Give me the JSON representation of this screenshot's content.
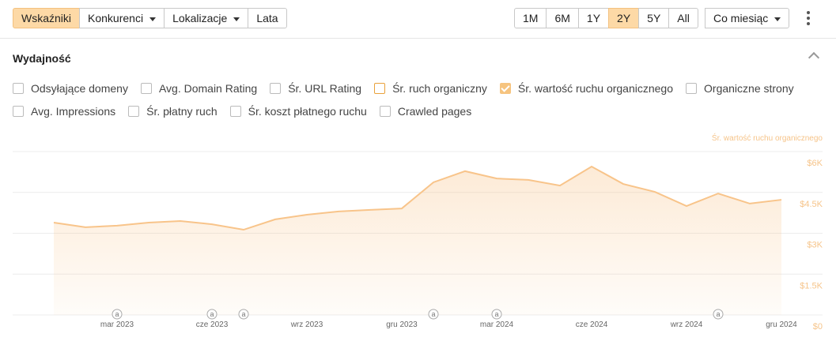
{
  "toolbar": {
    "tabs": [
      {
        "label": "Wskaźniki",
        "active": true,
        "dropdown": false
      },
      {
        "label": "Konkurenci",
        "active": false,
        "dropdown": true
      },
      {
        "label": "Lokalizacje",
        "active": false,
        "dropdown": true
      },
      {
        "label": "Lata",
        "active": false,
        "dropdown": false
      }
    ],
    "ranges": [
      {
        "label": "1M",
        "active": false
      },
      {
        "label": "6M",
        "active": false
      },
      {
        "label": "1Y",
        "active": false
      },
      {
        "label": "2Y",
        "active": true
      },
      {
        "label": "5Y",
        "active": false
      },
      {
        "label": "All",
        "active": false
      }
    ],
    "interval": "Co miesiąc"
  },
  "section": {
    "title": "Wydajność",
    "metrics": [
      [
        {
          "label": "Odsyłające domeny",
          "state": "unchecked"
        },
        {
          "label": "Avg. Domain Rating",
          "state": "unchecked"
        },
        {
          "label": "Śr. URL Rating",
          "state": "unchecked"
        },
        {
          "label": "Śr. ruch organiczny",
          "state": "highlighted"
        },
        {
          "label": "Śr. wartość ruchu organicznego",
          "state": "checked"
        },
        {
          "label": "Organiczne strony",
          "state": "unchecked"
        }
      ],
      [
        {
          "label": "Avg. Impressions",
          "state": "unchecked"
        },
        {
          "label": "Śr. płatny ruch",
          "state": "unchecked"
        },
        {
          "label": "Śr. koszt płatnego ruchu",
          "state": "unchecked"
        },
        {
          "label": "Crawled pages",
          "state": "unchecked"
        }
      ]
    ]
  },
  "chart_data": {
    "type": "area",
    "categories": [
      null,
      null,
      "mar 2023",
      null,
      null,
      "cze 2023",
      null,
      null,
      "wrz 2023",
      null,
      null,
      "gru 2023",
      null,
      null,
      "mar 2024",
      null,
      null,
      "cze 2024",
      null,
      null,
      "wrz 2024",
      null,
      null,
      "gru 2024"
    ],
    "series": [
      {
        "name": "Śr. wartość ruchu organicznego",
        "color": "#f8c48a",
        "axis": "y2",
        "values": [
          3390,
          3220,
          3280,
          3390,
          3450,
          3330,
          3130,
          3510,
          3680,
          3800,
          3860,
          3910,
          4870,
          5280,
          5010,
          4960,
          4750,
          5450,
          4810,
          4520,
          4000,
          4460,
          4090,
          4230
        ]
      }
    ],
    "y2lim": [
      0,
      6000
    ],
    "y2ticks": [
      {
        "value": 0,
        "label": "$0"
      },
      {
        "value": 1500,
        "label": "$1.5K"
      },
      {
        "value": 3000,
        "label": "$3K"
      },
      {
        "value": 4500,
        "label": "$4.5K"
      },
      {
        "value": 6000,
        "label": "$6K"
      }
    ],
    "grid": true,
    "annotations": [
      {
        "index": 2,
        "text": "a"
      },
      {
        "index": 5,
        "text": "a"
      },
      {
        "index": 6,
        "text": "a"
      },
      {
        "index": 12,
        "text": "a"
      },
      {
        "index": 14,
        "text": "a"
      },
      {
        "index": 21,
        "text": "a"
      }
    ]
  }
}
